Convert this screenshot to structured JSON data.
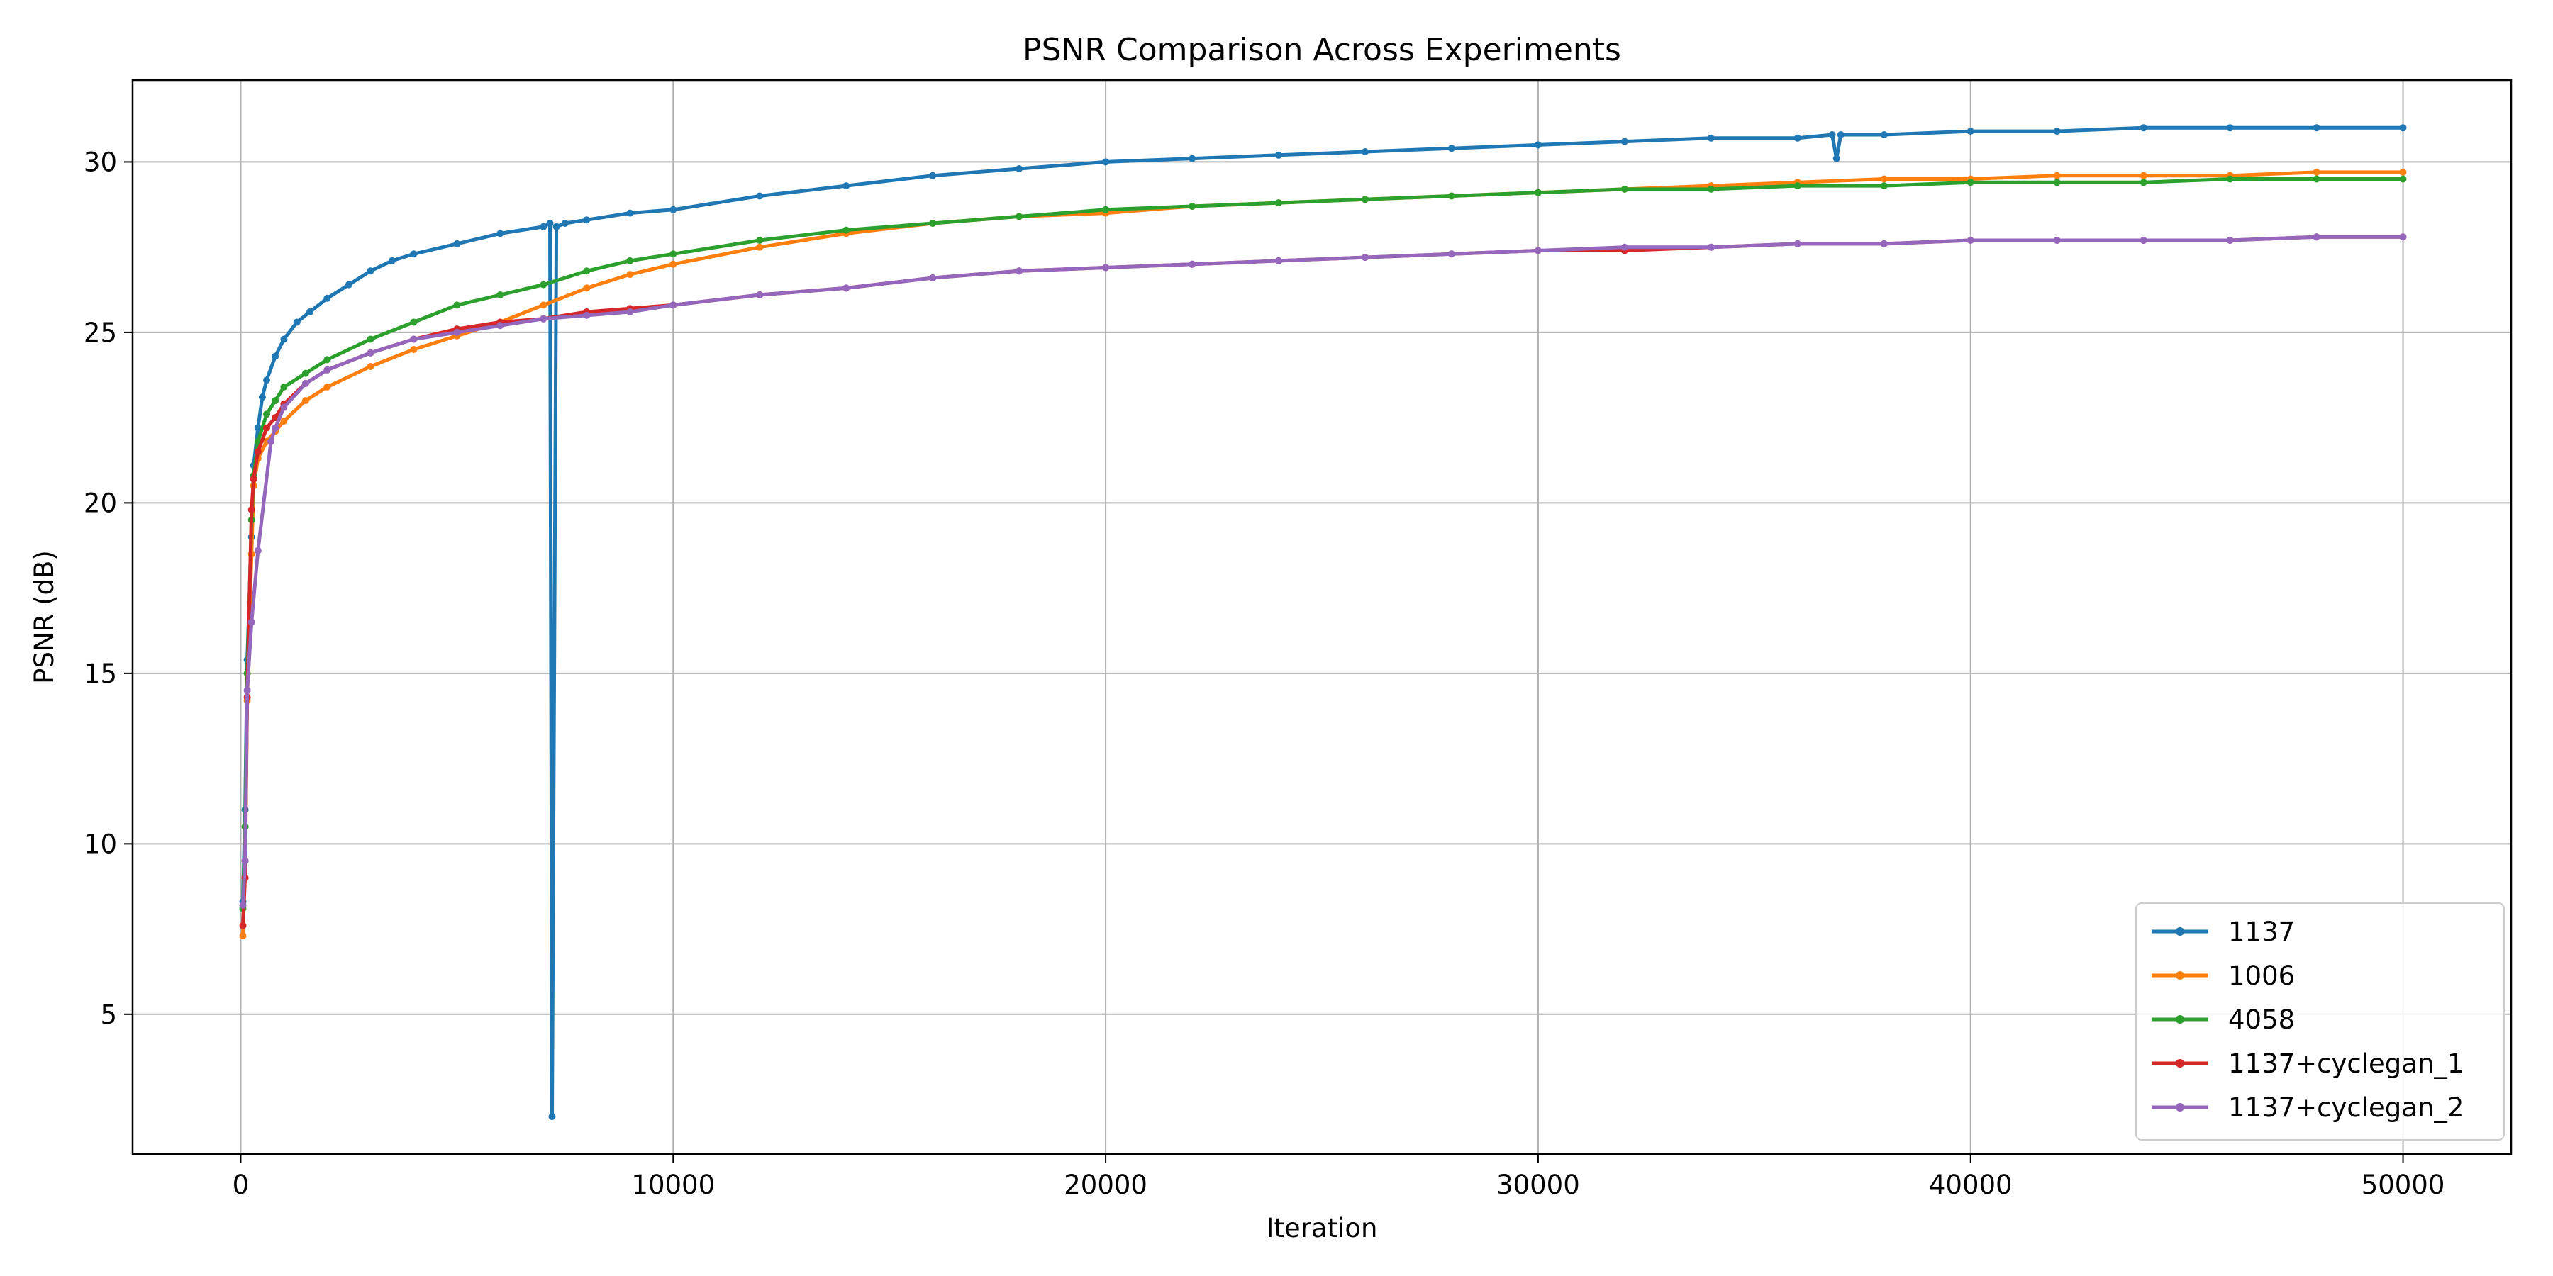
{
  "chart_data": {
    "type": "line",
    "title": "PSNR Comparison Across Experiments",
    "xlabel": "Iteration",
    "ylabel": "PSNR (dB)",
    "xlim": [
      -2500,
      52500
    ],
    "ylim": [
      0.9,
      32.4
    ],
    "xticks": [
      0,
      10000,
      20000,
      30000,
      40000,
      50000
    ],
    "yticks": [
      5,
      10,
      15,
      20,
      25,
      30
    ],
    "grid": true,
    "legend_position": "lower right",
    "series": [
      {
        "name": "1137",
        "color": "#1f77b4",
        "points": [
          [
            50,
            8.3
          ],
          [
            100,
            11
          ],
          [
            150,
            15.4
          ],
          [
            250,
            19
          ],
          [
            300,
            21.1
          ],
          [
            400,
            22.2
          ],
          [
            500,
            23.1
          ],
          [
            600,
            23.6
          ],
          [
            800,
            24.3
          ],
          [
            1000,
            24.8
          ],
          [
            1300,
            25.3
          ],
          [
            1600,
            25.6
          ],
          [
            2000,
            26.0
          ],
          [
            2500,
            26.4
          ],
          [
            3000,
            26.8
          ],
          [
            3500,
            27.1
          ],
          [
            4000,
            27.3
          ],
          [
            5000,
            27.6
          ],
          [
            6000,
            27.9
          ],
          [
            7000,
            28.1
          ],
          [
            7150,
            28.2
          ],
          [
            7200,
            2.0
          ],
          [
            7300,
            28.1
          ],
          [
            7500,
            28.2
          ],
          [
            8000,
            28.3
          ],
          [
            9000,
            28.5
          ],
          [
            10000,
            28.6
          ],
          [
            12000,
            29.0
          ],
          [
            14000,
            29.3
          ],
          [
            16000,
            29.6
          ],
          [
            18000,
            29.8
          ],
          [
            20000,
            30.0
          ],
          [
            22000,
            30.1
          ],
          [
            24000,
            30.2
          ],
          [
            26000,
            30.3
          ],
          [
            28000,
            30.4
          ],
          [
            30000,
            30.5
          ],
          [
            32000,
            30.6
          ],
          [
            34000,
            30.7
          ],
          [
            36000,
            30.7
          ],
          [
            36800,
            30.8
          ],
          [
            36900,
            30.1
          ],
          [
            37000,
            30.8
          ],
          [
            38000,
            30.8
          ],
          [
            40000,
            30.9
          ],
          [
            42000,
            30.9
          ],
          [
            44000,
            31.0
          ],
          [
            46000,
            31.0
          ],
          [
            48000,
            31.0
          ],
          [
            50000,
            31.0
          ]
        ]
      },
      {
        "name": "1006",
        "color": "#ff7f0e",
        "points": [
          [
            50,
            7.3
          ],
          [
            100,
            9.5
          ],
          [
            150,
            14.2
          ],
          [
            250,
            18.5
          ],
          [
            300,
            20.5
          ],
          [
            400,
            21.3
          ],
          [
            600,
            21.8
          ],
          [
            800,
            22.1
          ],
          [
            1000,
            22.4
          ],
          [
            1500,
            23.0
          ],
          [
            2000,
            23.4
          ],
          [
            3000,
            24.0
          ],
          [
            4000,
            24.5
          ],
          [
            5000,
            24.9
          ],
          [
            6000,
            25.3
          ],
          [
            7000,
            25.8
          ],
          [
            8000,
            26.3
          ],
          [
            9000,
            26.7
          ],
          [
            10000,
            27.0
          ],
          [
            12000,
            27.5
          ],
          [
            14000,
            27.9
          ],
          [
            16000,
            28.2
          ],
          [
            18000,
            28.4
          ],
          [
            20000,
            28.5
          ],
          [
            22000,
            28.7
          ],
          [
            24000,
            28.8
          ],
          [
            26000,
            28.9
          ],
          [
            28000,
            29.0
          ],
          [
            30000,
            29.1
          ],
          [
            32000,
            29.2
          ],
          [
            34000,
            29.3
          ],
          [
            36000,
            29.4
          ],
          [
            38000,
            29.5
          ],
          [
            40000,
            29.5
          ],
          [
            42000,
            29.6
          ],
          [
            44000,
            29.6
          ],
          [
            46000,
            29.6
          ],
          [
            48000,
            29.7
          ],
          [
            50000,
            29.7
          ]
        ]
      },
      {
        "name": "4058",
        "color": "#2ca02c",
        "points": [
          [
            50,
            8.1
          ],
          [
            100,
            10.5
          ],
          [
            150,
            15.0
          ],
          [
            250,
            19.5
          ],
          [
            300,
            20.8
          ],
          [
            400,
            21.8
          ],
          [
            600,
            22.6
          ],
          [
            800,
            23.0
          ],
          [
            1000,
            23.4
          ],
          [
            1500,
            23.8
          ],
          [
            2000,
            24.2
          ],
          [
            3000,
            24.8
          ],
          [
            4000,
            25.3
          ],
          [
            5000,
            25.8
          ],
          [
            6000,
            26.1
          ],
          [
            7000,
            26.4
          ],
          [
            8000,
            26.8
          ],
          [
            9000,
            27.1
          ],
          [
            10000,
            27.3
          ],
          [
            12000,
            27.7
          ],
          [
            14000,
            28.0
          ],
          [
            16000,
            28.2
          ],
          [
            18000,
            28.4
          ],
          [
            20000,
            28.6
          ],
          [
            22000,
            28.7
          ],
          [
            24000,
            28.8
          ],
          [
            26000,
            28.9
          ],
          [
            28000,
            29.0
          ],
          [
            30000,
            29.1
          ],
          [
            32000,
            29.2
          ],
          [
            34000,
            29.2
          ],
          [
            36000,
            29.3
          ],
          [
            38000,
            29.3
          ],
          [
            40000,
            29.4
          ],
          [
            42000,
            29.4
          ],
          [
            44000,
            29.4
          ],
          [
            46000,
            29.5
          ],
          [
            48000,
            29.5
          ],
          [
            50000,
            29.5
          ]
        ]
      },
      {
        "name": "1137+cyclegan_1",
        "color": "#d62728",
        "points": [
          [
            50,
            7.6
          ],
          [
            100,
            9.0
          ],
          [
            150,
            14.3
          ],
          [
            250,
            19.8
          ],
          [
            300,
            20.7
          ],
          [
            400,
            21.5
          ],
          [
            600,
            22.2
          ],
          [
            800,
            22.5
          ],
          [
            1000,
            22.9
          ],
          [
            1500,
            23.5
          ],
          [
            2000,
            23.9
          ],
          [
            3000,
            24.4
          ],
          [
            4000,
            24.8
          ],
          [
            5000,
            25.1
          ],
          [
            6000,
            25.3
          ],
          [
            7000,
            25.4
          ],
          [
            8000,
            25.6
          ],
          [
            9000,
            25.7
          ],
          [
            10000,
            25.8
          ],
          [
            12000,
            26.1
          ],
          [
            14000,
            26.3
          ],
          [
            16000,
            26.6
          ],
          [
            18000,
            26.8
          ],
          [
            20000,
            26.9
          ],
          [
            22000,
            27.0
          ],
          [
            24000,
            27.1
          ],
          [
            26000,
            27.2
          ],
          [
            28000,
            27.3
          ],
          [
            30000,
            27.4
          ],
          [
            32000,
            27.4
          ],
          [
            34000,
            27.5
          ],
          [
            36000,
            27.6
          ],
          [
            38000,
            27.6
          ],
          [
            40000,
            27.7
          ],
          [
            42000,
            27.7
          ],
          [
            44000,
            27.7
          ],
          [
            46000,
            27.7
          ],
          [
            48000,
            27.8
          ],
          [
            50000,
            27.8
          ]
        ]
      },
      {
        "name": "1137+cyclegan_2",
        "color": "#9467bd",
        "points": [
          [
            50,
            8.2
          ],
          [
            100,
            9.5
          ],
          [
            150,
            14.5
          ],
          [
            250,
            16.5
          ],
          [
            400,
            18.6
          ],
          [
            700,
            21.8
          ],
          [
            800,
            22.2
          ],
          [
            1000,
            22.8
          ],
          [
            1500,
            23.5
          ],
          [
            2000,
            23.9
          ],
          [
            3000,
            24.4
          ],
          [
            4000,
            24.8
          ],
          [
            5000,
            25.0
          ],
          [
            6000,
            25.2
          ],
          [
            7000,
            25.4
          ],
          [
            8000,
            25.5
          ],
          [
            9000,
            25.6
          ],
          [
            10000,
            25.8
          ],
          [
            12000,
            26.1
          ],
          [
            14000,
            26.3
          ],
          [
            16000,
            26.6
          ],
          [
            18000,
            26.8
          ],
          [
            20000,
            26.9
          ],
          [
            22000,
            27.0
          ],
          [
            24000,
            27.1
          ],
          [
            26000,
            27.2
          ],
          [
            28000,
            27.3
          ],
          [
            30000,
            27.4
          ],
          [
            32000,
            27.5
          ],
          [
            34000,
            27.5
          ],
          [
            36000,
            27.6
          ],
          [
            38000,
            27.6
          ],
          [
            40000,
            27.7
          ],
          [
            42000,
            27.7
          ],
          [
            44000,
            27.7
          ],
          [
            46000,
            27.7
          ],
          [
            48000,
            27.8
          ],
          [
            50000,
            27.8
          ]
        ]
      }
    ]
  }
}
